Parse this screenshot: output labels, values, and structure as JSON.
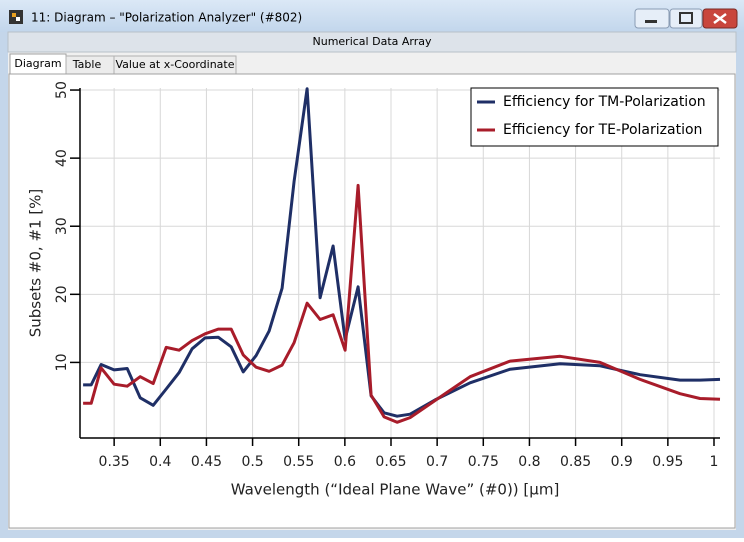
{
  "window": {
    "title": "11: Diagram – \"Polarization Analyzer\" (#802)",
    "header": "Numerical Data Array",
    "tabs": [
      "Diagram",
      "Table",
      "Value at x-Coordinate"
    ]
  },
  "chart_data": {
    "type": "line",
    "xlabel": "Wavelength (“Ideal Plane Wave” (#0)) [µm]",
    "ylabel": "Subsets #0, #1 [%]",
    "x": [
      0.3164,
      0.3251,
      0.3359,
      0.35,
      0.3641,
      0.3782,
      0.3923,
      0.4064,
      0.4204,
      0.4345,
      0.4486,
      0.4627,
      0.4768,
      0.4898,
      0.5038,
      0.5179,
      0.532,
      0.545,
      0.5591,
      0.5732,
      0.5873,
      0.6003,
      0.6144,
      0.6284,
      0.6425,
      0.6566,
      0.6707,
      0.6978,
      0.7357,
      0.779,
      0.8332,
      0.8765,
      0.9199,
      0.9632,
      0.9848,
      1.0065
    ],
    "series": [
      {
        "name": "Efficiency for TM-Polarization",
        "color": "#1f2f66",
        "values": [
          6.7,
          6.7,
          9.7,
          8.9,
          9.1,
          4.8,
          3.7,
          6.1,
          8.5,
          12.0,
          13.6,
          13.7,
          12.3,
          8.6,
          11.0,
          14.6,
          20.9,
          36.6,
          50.2,
          19.5,
          27.1,
          13.4,
          21.1,
          5.1,
          2.6,
          2.1,
          2.4,
          4.5,
          7.0,
          9.0,
          9.8,
          9.5,
          8.2,
          7.4,
          7.4,
          7.5
        ]
      },
      {
        "name": "Efficiency for TE-Polarization",
        "color": "#a81c2a",
        "values": [
          4.0,
          4.0,
          9.2,
          6.8,
          6.5,
          7.9,
          6.9,
          12.2,
          11.8,
          13.2,
          14.2,
          14.9,
          14.9,
          11.1,
          9.3,
          8.7,
          9.6,
          12.9,
          18.7,
          16.3,
          17.0,
          11.8,
          36.0,
          5.2,
          2.0,
          1.2,
          1.9,
          4.4,
          7.9,
          10.2,
          10.9,
          10.0,
          7.5,
          5.4,
          4.7,
          4.6
        ]
      }
    ],
    "xlim": [
      0.313,
      1.0065
    ],
    "ylim": [
      -1.1,
      50.3
    ],
    "xticks": [
      0.35,
      0.4,
      0.45,
      0.5,
      0.55,
      0.6,
      0.65,
      0.7,
      0.75,
      0.8,
      0.85,
      0.9,
      0.95,
      1
    ],
    "yticks": [
      10,
      20,
      30,
      40,
      50
    ],
    "grid": true,
    "legend": "upper right"
  }
}
